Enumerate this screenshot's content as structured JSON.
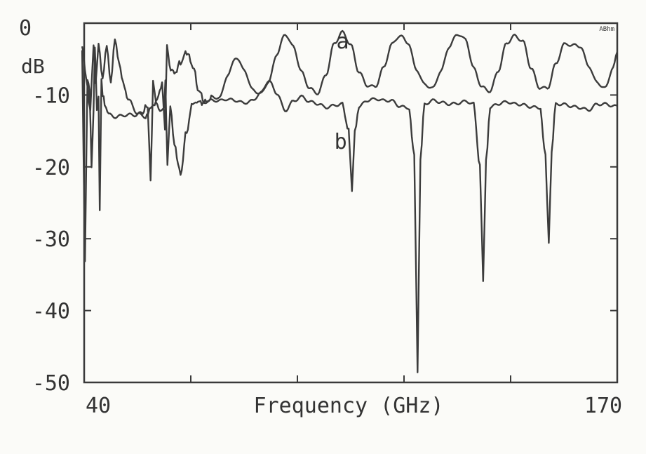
{
  "chart_data": {
    "type": "line",
    "title": "",
    "xlabel": "Frequency (GHz)",
    "ylabel": "dB",
    "corner_text": "ABhm",
    "xlim": [
      40,
      170
    ],
    "ylim": [
      -50,
      0
    ],
    "x_tick_labels": [
      {
        "value": 40,
        "label": "40"
      },
      {
        "value": 170,
        "label": "170"
      }
    ],
    "y_tick_labels": [
      {
        "value": 0,
        "label": "0"
      },
      {
        "value": -10,
        "label": "-10"
      },
      {
        "value": -20,
        "label": "-20"
      },
      {
        "value": -30,
        "label": "-30"
      },
      {
        "value": -40,
        "label": "-40"
      },
      {
        "value": -50,
        "label": "-50"
      }
    ],
    "grid": false,
    "line_color": "#3c3c3c",
    "series": [
      {
        "name": "a",
        "x": [
          39.5,
          40.5,
          41.5,
          42.3,
          42.8,
          43.5,
          44.5,
          45.5,
          46.5,
          47.5,
          48.5,
          49.5,
          51,
          53,
          55,
          57.5,
          59,
          59.7,
          60.2,
          60.8,
          62,
          63.5,
          65,
          66.5,
          68,
          69.5,
          71,
          73,
          75,
          77,
          79,
          81,
          83,
          85,
          87,
          89,
          91,
          93,
          95,
          97,
          99,
          101,
          103,
          105,
          107,
          109,
          111,
          113,
          115,
          117,
          119,
          121,
          123,
          125,
          127,
          129,
          131,
          133,
          135,
          137,
          139,
          141,
          143,
          145,
          147,
          149,
          151,
          153,
          155,
          157,
          159,
          161,
          163,
          165,
          167,
          169,
          170
        ],
        "y": [
          -3.5,
          -8,
          -12,
          -3,
          -8,
          -2.5,
          -7.5,
          -3,
          -8,
          -2.5,
          -5.5,
          -8.5,
          -11,
          -12.5,
          -12.8,
          -11,
          -8.5,
          -15,
          -3,
          -6,
          -7,
          -5.5,
          -4,
          -6,
          -9.5,
          -11,
          -10.5,
          -10.5,
          -7,
          -4.5,
          -6.5,
          -9.5,
          -10,
          -8,
          -4,
          -1.5,
          -3.5,
          -7,
          -9,
          -9.5,
          -7,
          -3,
          -1.5,
          -3,
          -6.5,
          -8.5,
          -9,
          -6.5,
          -3,
          -1.5,
          -2.5,
          -6.5,
          -8.8,
          -9.2,
          -6.5,
          -3,
          -1.5,
          -2.5,
          -6.5,
          -8.8,
          -9.2,
          -6.5,
          -3,
          -2,
          -2.5,
          -6,
          -8.8,
          -9.2,
          -6,
          -3,
          -2.8,
          -3,
          -6,
          -8.5,
          -9.2,
          -6,
          -4
        ]
      },
      {
        "name": "b",
        "x": [
          39.5,
          40.2,
          40.8,
          41.3,
          41.8,
          42.3,
          42.6,
          43.1,
          43.5,
          43.8,
          44.2,
          44.5,
          45,
          46,
          48,
          50,
          52,
          54,
          55.5,
          56.2,
          56.8,
          57.5,
          58.5,
          59.5,
          59.8,
          60.3,
          61,
          62,
          63.5,
          65,
          66.5,
          67.5,
          69,
          71,
          73,
          75,
          77,
          79,
          81,
          83,
          85,
          87,
          89,
          91,
          93,
          95,
          97,
          99,
          101,
          103,
          104.5,
          105.3,
          106,
          107,
          109,
          111,
          113,
          115,
          117,
          119,
          120.5,
          121.3,
          122,
          123,
          125,
          127,
          129,
          131,
          133,
          135,
          136.5,
          137.3,
          138,
          139,
          141,
          143,
          145,
          147,
          149,
          151,
          152.5,
          153.3,
          154,
          155,
          157,
          159,
          161,
          163,
          165,
          167,
          169,
          170
        ],
        "y": [
          -4,
          -33,
          -8,
          -9,
          -20,
          -12,
          -3,
          -12,
          -10,
          -26,
          -8,
          -10,
          -11,
          -12.5,
          -13,
          -13,
          -13,
          -12.5,
          -11.5,
          -22,
          -8,
          -11,
          -12,
          -12,
          -8,
          -20,
          -12,
          -17,
          -21,
          -15,
          -11,
          -11,
          -11,
          -11,
          -11,
          -10.5,
          -10.5,
          -11,
          -11,
          -10,
          -8,
          -9.5,
          -12,
          -11,
          -10.5,
          -11,
          -11,
          -11.5,
          -11.5,
          -11.5,
          -15,
          -23,
          -15,
          -11.5,
          -10.5,
          -10.5,
          -11,
          -11,
          -11.5,
          -11.5,
          -18,
          -49,
          -19,
          -11.5,
          -11,
          -11,
          -11,
          -11,
          -11,
          -11.5,
          -20,
          -35.5,
          -19,
          -11.5,
          -11,
          -11,
          -11.5,
          -11.5,
          -11.5,
          -11.5,
          -18,
          -31,
          -18,
          -11.5,
          -11.5,
          -11.5,
          -11.5,
          -12,
          -11.5,
          -11.5,
          -11.5,
          -11.5
        ]
      }
    ]
  }
}
